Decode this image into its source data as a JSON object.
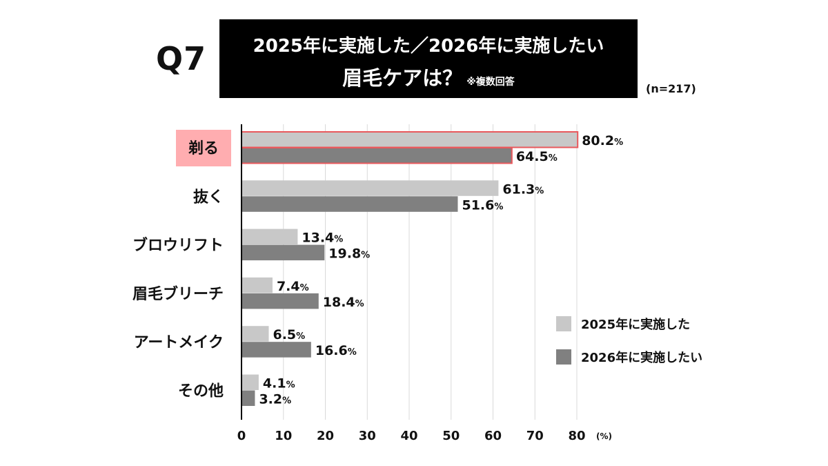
{
  "header": {
    "question": "Q7",
    "title_line1": "2025年に実施した／2026年に実施したい",
    "title_line2": "眉毛ケアは？",
    "title_note": "※複数回答",
    "sample_size": "(n=217)"
  },
  "colors": {
    "series_2025": "#c8c8c8",
    "series_2026": "#808080",
    "highlight_border": "#e8585c",
    "highlight_label_bg": "#ffadb0",
    "grid": "#d9d9d9"
  },
  "chart_data": {
    "type": "bar",
    "orientation": "horizontal",
    "title": "2025年に実施した／2026年に実施したい 眉毛ケアは？",
    "categories": [
      "剃る",
      "抜く",
      "ブロウリフト",
      "眉毛ブリーチ",
      "アートメイク",
      "その他"
    ],
    "highlight_category": "剃る",
    "series": [
      {
        "name": "2025年に実施した",
        "values": [
          80.2,
          61.3,
          13.4,
          7.4,
          6.5,
          4.1
        ]
      },
      {
        "name": "2026年に実施したい",
        "values": [
          64.5,
          51.6,
          19.8,
          18.4,
          16.6,
          3.2
        ]
      }
    ],
    "value_suffix": "%",
    "xlim": [
      0,
      80
    ],
    "x_ticks": [
      "0",
      "10",
      "20",
      "30",
      "40",
      "50",
      "60",
      "70",
      "80"
    ],
    "x_unit_label": "(%)",
    "grid": true,
    "legend_position": "bottom-right"
  }
}
